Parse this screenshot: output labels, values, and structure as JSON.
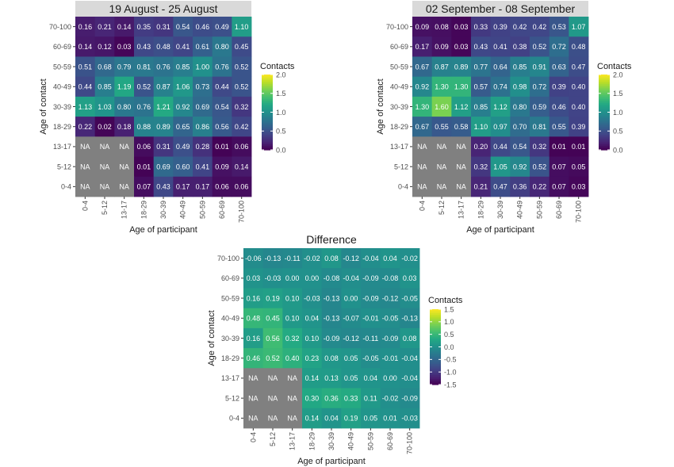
{
  "chart_data": [
    {
      "type": "heatmap",
      "title": "19 August - 25 August",
      "xlabel": "Age of participant",
      "ylabel": "Age of contact",
      "x_categories": [
        "0-4",
        "5-12",
        "13-17",
        "18-29",
        "30-39",
        "40-49",
        "50-59",
        "60-69",
        "70-100"
      ],
      "y_categories": [
        "70-100",
        "60-69",
        "50-59",
        "40-49",
        "30-39",
        "18-29",
        "13-17",
        "5-12",
        "0-4"
      ],
      "values": [
        [
          0.16,
          0.21,
          0.14,
          0.35,
          0.31,
          0.54,
          0.46,
          0.49,
          1.1
        ],
        [
          0.14,
          0.12,
          0.03,
          0.43,
          0.48,
          0.41,
          0.61,
          0.8,
          0.45
        ],
        [
          0.51,
          0.68,
          0.79,
          0.81,
          0.76,
          0.85,
          1.0,
          0.76,
          0.52
        ],
        [
          0.44,
          0.85,
          1.19,
          0.52,
          0.87,
          1.06,
          0.73,
          0.44,
          0.52
        ],
        [
          1.13,
          1.03,
          0.8,
          0.76,
          1.21,
          0.92,
          0.69,
          0.54,
          0.32
        ],
        [
          0.22,
          0.02,
          0.18,
          0.88,
          0.89,
          0.65,
          0.86,
          0.56,
          0.42
        ],
        [
          null,
          null,
          null,
          0.06,
          0.31,
          0.49,
          0.28,
          0.01,
          0.06
        ],
        [
          null,
          null,
          null,
          0.01,
          0.69,
          0.6,
          0.41,
          0.09,
          0.14
        ],
        [
          null,
          null,
          null,
          0.07,
          0.43,
          0.17,
          0.17,
          0.06,
          0.06
        ]
      ],
      "na_label": "NA",
      "legend": {
        "title": "Contacts",
        "range": [
          0,
          2
        ],
        "ticks": [
          2.0,
          1.5,
          1.0,
          0.5,
          0.0
        ],
        "tick_labels": [
          "2.0",
          "1.5",
          "1.0",
          "0.5",
          "0.0"
        ]
      }
    },
    {
      "type": "heatmap",
      "title": "02 September - 08 September",
      "xlabel": "Age of participant",
      "ylabel": "Age of contact",
      "x_categories": [
        "0-4",
        "5-12",
        "13-17",
        "18-29",
        "30-39",
        "40-49",
        "50-59",
        "60-69",
        "70-100"
      ],
      "y_categories": [
        "70-100",
        "60-69",
        "50-59",
        "40-49",
        "30-39",
        "18-29",
        "13-17",
        "5-12",
        "0-4"
      ],
      "values": [
        [
          0.09,
          0.08,
          0.03,
          0.33,
          0.39,
          0.42,
          0.42,
          0.53,
          1.07
        ],
        [
          0.17,
          0.09,
          0.03,
          0.43,
          0.41,
          0.38,
          0.52,
          0.72,
          0.48
        ],
        [
          0.67,
          0.87,
          0.89,
          0.77,
          0.64,
          0.85,
          0.91,
          0.63,
          0.47
        ],
        [
          0.92,
          1.3,
          1.3,
          0.57,
          0.74,
          0.98,
          0.72,
          0.39,
          0.4
        ],
        [
          1.3,
          1.6,
          1.12,
          0.85,
          1.12,
          0.8,
          0.59,
          0.46,
          0.4
        ],
        [
          0.67,
          0.55,
          0.58,
          1.1,
          0.97,
          0.7,
          0.81,
          0.55,
          0.39
        ],
        [
          null,
          null,
          null,
          0.2,
          0.44,
          0.54,
          0.32,
          0.01,
          0.01
        ],
        [
          null,
          null,
          null,
          0.32,
          1.05,
          0.92,
          0.52,
          0.07,
          0.05
        ],
        [
          null,
          null,
          null,
          0.21,
          0.47,
          0.36,
          0.22,
          0.07,
          0.03
        ]
      ],
      "na_label": "NA",
      "legend": {
        "title": "Contacts",
        "range": [
          0,
          2
        ],
        "ticks": [
          2.0,
          1.5,
          1.0,
          0.5,
          0.0
        ],
        "tick_labels": [
          "2.0",
          "1.5",
          "1.0",
          "0.5",
          "0.0"
        ]
      }
    },
    {
      "type": "heatmap",
      "title": "Difference",
      "xlabel": "Age of participant",
      "ylabel": "Age of contact",
      "x_categories": [
        "0-4",
        "5-12",
        "13-17",
        "18-29",
        "30-39",
        "40-49",
        "50-59",
        "60-69",
        "70-100"
      ],
      "y_categories": [
        "70-100",
        "60-69",
        "50-59",
        "40-49",
        "30-39",
        "18-29",
        "13-17",
        "5-12",
        "0-4"
      ],
      "values": [
        [
          -0.06,
          -0.13,
          -0.11,
          -0.02,
          0.08,
          -0.12,
          -0.04,
          0.04,
          -0.02
        ],
        [
          0.03,
          -0.03,
          0.0,
          0.0,
          -0.08,
          -0.04,
          -0.09,
          -0.08,
          0.03
        ],
        [
          0.16,
          0.19,
          0.1,
          -0.03,
          -0.13,
          0.0,
          -0.09,
          -0.12,
          -0.05
        ],
        [
          0.48,
          0.45,
          0.1,
          0.04,
          -0.13,
          -0.07,
          -0.01,
          -0.05,
          -0.13
        ],
        [
          0.16,
          0.56,
          0.32,
          0.1,
          -0.09,
          -0.12,
          -0.11,
          -0.09,
          0.08
        ],
        [
          0.46,
          0.52,
          0.4,
          0.23,
          0.08,
          0.05,
          -0.05,
          -0.01,
          -0.04
        ],
        [
          null,
          null,
          null,
          0.14,
          0.13,
          0.05,
          0.04,
          0.0,
          -0.04
        ],
        [
          null,
          null,
          null,
          0.3,
          0.36,
          0.33,
          0.11,
          -0.02,
          -0.09
        ],
        [
          null,
          null,
          null,
          0.14,
          0.04,
          0.19,
          0.05,
          0.01,
          -0.03
        ]
      ],
      "na_label": "NA",
      "legend": {
        "title": "Contacts",
        "range": [
          -1.5,
          1.5
        ],
        "ticks": [
          1.5,
          1.0,
          0.5,
          0.0,
          -0.5,
          -1.0,
          -1.5
        ],
        "tick_labels": [
          "1.5",
          "1.0",
          "0.5",
          "0.0",
          "-0.5",
          "-1.0",
          "-1.5"
        ]
      }
    }
  ]
}
